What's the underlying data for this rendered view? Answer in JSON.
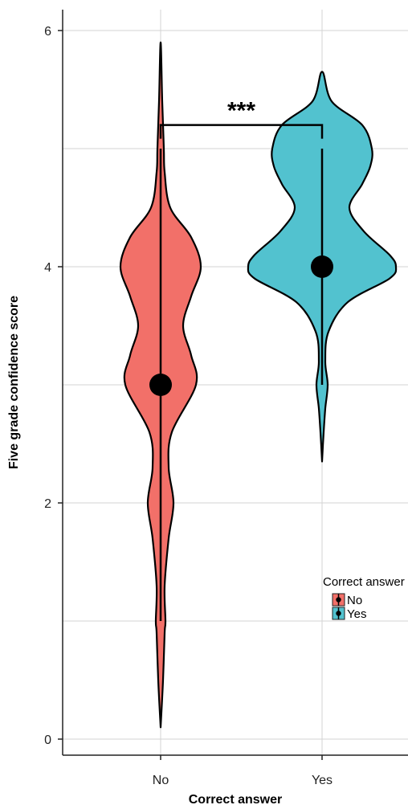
{
  "chart_data": {
    "type": "violin",
    "xlabel": "Correct answer",
    "ylabel": "Five grade confidence score",
    "categories": [
      "No",
      "Yes"
    ],
    "ylim": [
      -0.2,
      6.2
    ],
    "yticks": [
      0,
      2,
      4,
      6
    ],
    "grid": true,
    "series": [
      {
        "name": "No",
        "color": "#F27069",
        "median": 3,
        "whisker_low": 1,
        "whisker_high": 5,
        "min": 0.1,
        "max": 5.9,
        "density": [
          [
            0.1,
            0.0
          ],
          [
            0.5,
            0.03
          ],
          [
            0.9,
            0.05
          ],
          [
            1.0,
            0.06
          ],
          [
            1.3,
            0.05
          ],
          [
            1.7,
            0.1
          ],
          [
            2.0,
            0.16
          ],
          [
            2.3,
            0.1
          ],
          [
            2.6,
            0.14
          ],
          [
            3.0,
            0.44
          ],
          [
            3.25,
            0.38
          ],
          [
            3.5,
            0.28
          ],
          [
            3.75,
            0.38
          ],
          [
            4.0,
            0.5
          ],
          [
            4.25,
            0.38
          ],
          [
            4.5,
            0.12
          ],
          [
            4.8,
            0.05
          ],
          [
            5.0,
            0.04
          ],
          [
            5.4,
            0.02
          ],
          [
            5.9,
            0.0
          ]
        ]
      },
      {
        "name": "Yes",
        "color": "#52C2CF",
        "median": 4,
        "whisker_low": 3,
        "whisker_high": 5,
        "min": 2.35,
        "max": 5.65,
        "density": [
          [
            2.35,
            0.0
          ],
          [
            2.6,
            0.02
          ],
          [
            2.8,
            0.04
          ],
          [
            3.0,
            0.07
          ],
          [
            3.2,
            0.04
          ],
          [
            3.45,
            0.08
          ],
          [
            3.7,
            0.32
          ],
          [
            3.9,
            0.84
          ],
          [
            4.0,
            0.92
          ],
          [
            4.1,
            0.84
          ],
          [
            4.3,
            0.52
          ],
          [
            4.5,
            0.34
          ],
          [
            4.7,
            0.5
          ],
          [
            4.85,
            0.6
          ],
          [
            5.0,
            0.62
          ],
          [
            5.2,
            0.5
          ],
          [
            5.4,
            0.12
          ],
          [
            5.65,
            0.0
          ]
        ]
      }
    ],
    "annotation": {
      "text": "***",
      "between": [
        "No",
        "Yes"
      ],
      "y": 5.2
    }
  },
  "legend": {
    "title": "Correct answer",
    "items": [
      {
        "label": "No",
        "color": "#F27069"
      },
      {
        "label": "Yes",
        "color": "#52C2CF"
      }
    ]
  }
}
